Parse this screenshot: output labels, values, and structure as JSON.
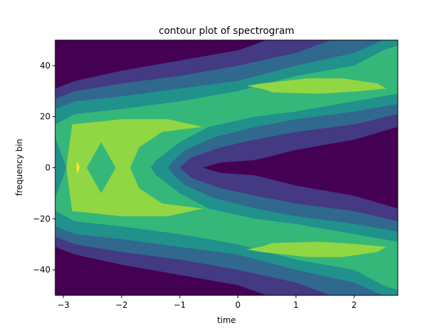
{
  "chart_data": {
    "type": "contourf",
    "title": "contour plot of spectrogram",
    "xlabel": "time",
    "ylabel": "frequency bin",
    "xlim": [
      -3.14,
      2.75
    ],
    "ylim": [
      -50,
      50
    ],
    "xticks": [
      -3,
      -2,
      -1,
      0,
      1,
      2
    ],
    "yticks": [
      -40,
      -20,
      0,
      20,
      40
    ],
    "xtick_labels": [
      "−3",
      "−2",
      "−1",
      "0",
      "1",
      "2"
    ],
    "ytick_labels": [
      "−40",
      "−20",
      "0",
      "20",
      "40"
    ],
    "levels": [
      0,
      1,
      2,
      3,
      4,
      5,
      6
    ],
    "colors": [
      "#440154",
      "#443983",
      "#31688e",
      "#21918c",
      "#35b779",
      "#90d743",
      "#fde725"
    ],
    "grid": false,
    "legend": "none",
    "regions": [
      {
        "level": 1,
        "polygon": [
          [
            -3.14,
            -50
          ],
          [
            2.75,
            -50
          ],
          [
            2.75,
            50
          ],
          [
            -3.14,
            50
          ]
        ]
      },
      {
        "level": 2,
        "polygon": [
          [
            -3.14,
            31
          ],
          [
            -2.8,
            34
          ],
          [
            -2,
            38
          ],
          [
            -1,
            42
          ],
          [
            0,
            46
          ],
          [
            0.5,
            50
          ],
          [
            2.75,
            50
          ],
          [
            2.75,
            -50
          ],
          [
            0.5,
            -50
          ],
          [
            0,
            -46
          ],
          [
            -1,
            -42
          ],
          [
            -2,
            -38
          ],
          [
            -2.8,
            -34
          ],
          [
            -3.14,
            -31
          ]
        ]
      },
      {
        "level": 3,
        "polygon": [
          [
            -3.14,
            27
          ],
          [
            -2.8,
            30
          ],
          [
            -2,
            33
          ],
          [
            -1,
            36
          ],
          [
            0,
            40
          ],
          [
            1,
            45
          ],
          [
            1.6,
            50
          ],
          [
            2.75,
            50
          ],
          [
            2.75,
            -50
          ],
          [
            1.6,
            -50
          ],
          [
            1,
            -45
          ],
          [
            0,
            -40
          ],
          [
            -1,
            -36
          ],
          [
            -2,
            -33
          ],
          [
            -2.8,
            -30
          ],
          [
            -3.14,
            -27
          ]
        ]
      },
      {
        "level": 4,
        "polygon": [
          [
            -3.14,
            23
          ],
          [
            -2.8,
            26
          ],
          [
            -2,
            28
          ],
          [
            -1,
            31
          ],
          [
            0,
            34
          ],
          [
            1,
            40
          ],
          [
            2,
            45
          ],
          [
            2.5,
            50
          ],
          [
            2.75,
            50
          ],
          [
            2.75,
            -50
          ],
          [
            2.5,
            -50
          ],
          [
            2,
            -45
          ],
          [
            1,
            -40
          ],
          [
            0,
            -34
          ],
          [
            -1,
            -31
          ],
          [
            -2,
            -28
          ],
          [
            -2.8,
            -26
          ],
          [
            -3.14,
            -23
          ]
        ]
      },
      {
        "level": 5,
        "polygon": [
          [
            -3.14,
            17
          ],
          [
            -2.8,
            21
          ],
          [
            -2,
            23
          ],
          [
            -1,
            26
          ],
          [
            0,
            30
          ],
          [
            1,
            36
          ],
          [
            2,
            40
          ],
          [
            2.5,
            46
          ],
          [
            2.75,
            48
          ],
          [
            2.75,
            29
          ],
          [
            2,
            26
          ],
          [
            1,
            22
          ],
          [
            0.3,
            20
          ],
          [
            -0.5,
            16
          ],
          [
            -1,
            10
          ],
          [
            -1.4,
            3
          ],
          [
            -1.5,
            0
          ],
          [
            -1.4,
            -3
          ],
          [
            -1,
            -10
          ],
          [
            -0.5,
            -16
          ],
          [
            0.3,
            -20
          ],
          [
            1,
            -22
          ],
          [
            2,
            -26
          ],
          [
            2.75,
            -29
          ],
          [
            2.75,
            -48
          ],
          [
            2.5,
            -46
          ],
          [
            2,
            -40
          ],
          [
            1,
            -36
          ],
          [
            0,
            -30
          ],
          [
            -1,
            -26
          ],
          [
            -2,
            -23
          ],
          [
            -2.8,
            -21
          ],
          [
            -3.14,
            -17
          ]
        ]
      },
      {
        "level": 4,
        "polygon": [
          [
            -3.14,
            12
          ],
          [
            -2.95,
            0
          ],
          [
            -3.14,
            -12
          ]
        ]
      },
      {
        "level": 6,
        "polygon": [
          [
            -2.85,
            17
          ],
          [
            -2,
            19
          ],
          [
            -1.2,
            19
          ],
          [
            -0.6,
            16
          ],
          [
            -1.3,
            14
          ],
          [
            -1.7,
            8
          ],
          [
            -1.85,
            0
          ],
          [
            -1.7,
            -8
          ],
          [
            -1.3,
            -14
          ],
          [
            -0.6,
            -16
          ],
          [
            -1.2,
            -19
          ],
          [
            -2,
            -19
          ],
          [
            -2.85,
            -17
          ],
          [
            -2.95,
            0
          ]
        ]
      },
      {
        "level": 5,
        "polygon": [
          [
            -2.35,
            10
          ],
          [
            -2.1,
            0
          ],
          [
            -2.35,
            -10
          ],
          [
            -2.6,
            0
          ]
        ]
      },
      {
        "level": 7,
        "polygon": [
          [
            -2.76,
            2.5
          ],
          [
            -2.72,
            0
          ],
          [
            -2.76,
            -2.5
          ],
          [
            -2.78,
            0
          ]
        ]
      },
      {
        "level": 6,
        "polygon": [
          [
            0.15,
            32
          ],
          [
            0.4,
            33
          ],
          [
            1.2,
            35
          ],
          [
            1.8,
            35
          ],
          [
            2.4,
            33
          ],
          [
            2.55,
            31
          ],
          [
            2.1,
            30
          ],
          [
            1.4,
            29
          ],
          [
            0.6,
            29.5
          ],
          [
            0.4,
            31
          ]
        ]
      },
      {
        "level": 6,
        "polygon": [
          [
            0.15,
            -32
          ],
          [
            0.4,
            -33
          ],
          [
            1.2,
            -35
          ],
          [
            1.8,
            -35
          ],
          [
            2.4,
            -33
          ],
          [
            2.55,
            -31
          ],
          [
            2.1,
            -30
          ],
          [
            1.4,
            -29
          ],
          [
            0.6,
            -29.5
          ],
          [
            0.4,
            -31
          ]
        ]
      },
      {
        "level": 4,
        "polygon": [
          [
            2.75,
            29
          ],
          [
            2,
            26
          ],
          [
            1,
            22
          ],
          [
            0.3,
            20
          ],
          [
            -0.5,
            16
          ],
          [
            -1,
            10
          ],
          [
            -1.25,
            3
          ],
          [
            -1.35,
            0
          ],
          [
            -1.25,
            -3
          ],
          [
            -1,
            -10
          ],
          [
            -0.5,
            -16
          ],
          [
            0.3,
            -20
          ],
          [
            1,
            -22
          ],
          [
            2,
            -26
          ],
          [
            2.75,
            -29
          ]
        ]
      },
      {
        "level": 3,
        "polygon": [
          [
            2.75,
            25
          ],
          [
            2,
            22
          ],
          [
            1,
            19
          ],
          [
            0.3,
            16
          ],
          [
            -0.4,
            12
          ],
          [
            -0.9,
            7
          ],
          [
            -1.1,
            3
          ],
          [
            -1.2,
            0
          ],
          [
            -1.1,
            -3
          ],
          [
            -0.9,
            -7
          ],
          [
            -0.4,
            -12
          ],
          [
            0.3,
            -16
          ],
          [
            1,
            -19
          ],
          [
            2,
            -22
          ],
          [
            2.75,
            -25
          ]
        ]
      },
      {
        "level": 2,
        "polygon": [
          [
            2.75,
            21
          ],
          [
            2,
            17
          ],
          [
            1,
            14
          ],
          [
            0.3,
            11
          ],
          [
            -0.3,
            8
          ],
          [
            -0.8,
            4
          ],
          [
            -1.0,
            0
          ],
          [
            -0.8,
            -4
          ],
          [
            -0.3,
            -8
          ],
          [
            0.3,
            -11
          ],
          [
            1,
            -14
          ],
          [
            2,
            -17
          ],
          [
            2.75,
            -21
          ]
        ]
      },
      {
        "level": 1,
        "polygon": [
          [
            2.75,
            16
          ],
          [
            2,
            11
          ],
          [
            1,
            7
          ],
          [
            0.3,
            3
          ],
          [
            -0.3,
            2
          ],
          [
            -0.6,
            0
          ],
          [
            -0.3,
            -2
          ],
          [
            0.3,
            -3
          ],
          [
            1,
            -7
          ],
          [
            2,
            -11
          ],
          [
            2.75,
            -16
          ]
        ]
      }
    ]
  }
}
